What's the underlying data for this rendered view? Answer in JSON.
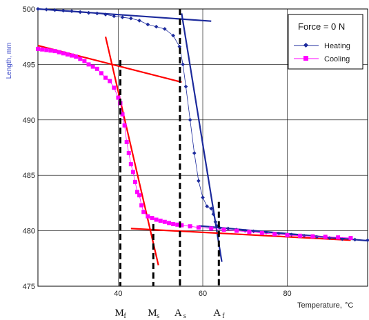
{
  "chart_data": {
    "type": "line",
    "title": "",
    "xlabel": "Temperature,",
    "xlabel_unit": "°C",
    "ylabel": "Length, mm",
    "xlim": [
      21,
      99
    ],
    "ylim": [
      475,
      500
    ],
    "x_ticks": [
      40,
      60,
      80
    ],
    "y_ticks": [
      475,
      480,
      485,
      490,
      495,
      500
    ],
    "grid": true,
    "legend": {
      "title": "Force = 0 N",
      "placement": "top-right",
      "entries": [
        {
          "name": "Heating",
          "color": "#1c2a9c",
          "marker": "diamond"
        },
        {
          "name": "Cooling",
          "color": "#ff00ff",
          "marker": "square"
        }
      ]
    },
    "series": [
      {
        "name": "Heating",
        "color": "#1c2a9c",
        "marker": "diamond",
        "x": [
          21,
          23,
          25,
          27,
          29,
          31,
          33,
          35,
          37,
          39,
          41,
          43,
          45,
          47,
          49,
          51,
          53,
          54.5,
          55.3,
          56,
          57,
          58,
          59,
          60,
          61,
          62,
          62.5,
          63,
          63.5,
          64,
          66,
          68,
          70,
          72,
          75,
          78,
          81,
          84,
          87,
          90,
          93,
          96,
          99
        ],
        "y": [
          500.0,
          499.95,
          499.9,
          499.85,
          499.8,
          499.72,
          499.65,
          499.6,
          499.5,
          499.35,
          499.25,
          499.15,
          498.95,
          498.6,
          498.4,
          498.2,
          497.6,
          496.6,
          495.0,
          493.0,
          490.0,
          487.0,
          484.5,
          483.0,
          482.2,
          482.0,
          481.5,
          480.8,
          480.4,
          480.25,
          480.2,
          480.1,
          480.0,
          479.95,
          479.85,
          479.75,
          479.65,
          479.55,
          479.45,
          479.35,
          479.25,
          479.2,
          479.15
        ]
      },
      {
        "name": "Cooling",
        "color": "#ff00ff",
        "marker": "square",
        "x": [
          21,
          22,
          23,
          24,
          25,
          26,
          27,
          28,
          29,
          30,
          31,
          32,
          33,
          34,
          35,
          36,
          37,
          38,
          39,
          40,
          40.5,
          41,
          41.5,
          42,
          42.5,
          43,
          43.5,
          44,
          44.5,
          45,
          45.5,
          46,
          47,
          48,
          49,
          50,
          51,
          52,
          53,
          54,
          55,
          57,
          59,
          62,
          65,
          68,
          71,
          74,
          77,
          80,
          83,
          86,
          89,
          92,
          95
        ],
        "y": [
          496.4,
          496.35,
          496.3,
          496.25,
          496.2,
          496.1,
          496.0,
          495.9,
          495.8,
          495.7,
          495.5,
          495.3,
          495.0,
          494.8,
          494.6,
          494.2,
          493.8,
          493.5,
          492.9,
          492.0,
          491.5,
          490.5,
          489.5,
          488.0,
          487.0,
          486.0,
          485.3,
          484.4,
          483.5,
          483.2,
          482.3,
          481.7,
          481.3,
          481.15,
          481.0,
          480.9,
          480.8,
          480.7,
          480.6,
          480.55,
          480.5,
          480.4,
          480.3,
          480.2,
          480.1,
          480.0,
          479.9,
          479.8,
          479.7,
          479.6,
          479.55,
          479.5,
          479.45,
          479.4,
          479.35
        ]
      }
    ],
    "tangent_lines": [
      {
        "color": "#1c2a9c",
        "x": [
          21,
          62
        ],
        "y": [
          500.0,
          498.9
        ]
      },
      {
        "color": "#1c2a9c",
        "x": [
          55,
          64.5
        ],
        "y": [
          499.6,
          477.2
        ]
      },
      {
        "color": "#1c2a9c",
        "x": [
          59,
          99
        ],
        "y": [
          480.45,
          479.1
        ]
      },
      {
        "color": "#ff0000",
        "x": [
          21,
          55
        ],
        "y": [
          496.7,
          493.4
        ]
      },
      {
        "color": "#ff0000",
        "x": [
          37,
          49.5
        ],
        "y": [
          497.5,
          476.9
        ]
      },
      {
        "color": "#ff0000",
        "x": [
          43,
          95
        ],
        "y": [
          480.2,
          479.15
        ]
      }
    ],
    "transition_markers": [
      {
        "letter": "M",
        "sub": "f",
        "x": 40.5,
        "y_top": 495.4
      },
      {
        "letter": "M",
        "sub": "s",
        "x": 48.3,
        "y_top": 480.6
      },
      {
        "letter": "A",
        "sub": "s",
        "x": 54.6,
        "y_top": 500.0
      },
      {
        "letter": "A",
        "sub": "f",
        "x": 63.8,
        "y_top": 482.6
      }
    ]
  }
}
